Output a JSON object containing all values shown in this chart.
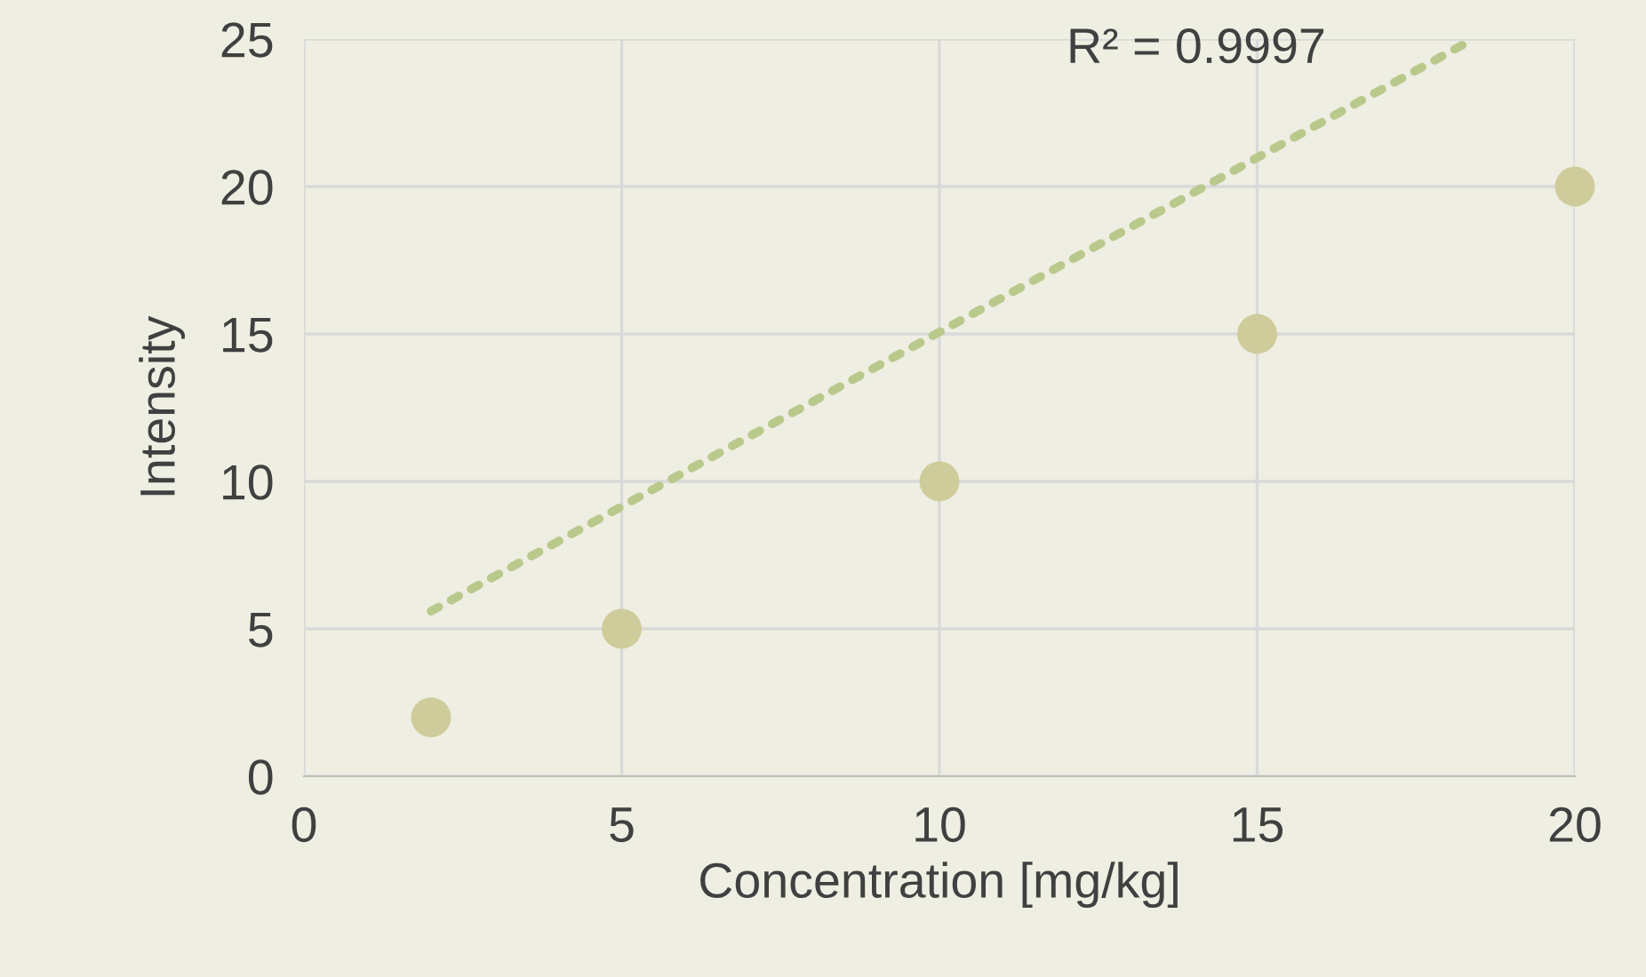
{
  "chart_data": {
    "type": "scatter",
    "xlabel": "Concentration [mg/kg]",
    "ylabel": "Intensity",
    "x": [
      2,
      5,
      10,
      15,
      20
    ],
    "series": [
      {
        "color": "#cfcc9c",
        "values": [
          2,
          5,
          10,
          15,
          20
        ],
        "marker": "circle"
      },
      {
        "type": "line",
        "color": "#b9c98c",
        "x": [
          2,
          18.4
        ],
        "values": [
          5.6,
          25
        ],
        "line_style": "dotted",
        "marker": "none"
      }
    ],
    "annotations": [
      "R² = 0.9997"
    ],
    "xlim": [
      0,
      20
    ],
    "ylim": [
      0,
      25
    ],
    "xticks": [
      0,
      5,
      10,
      15,
      20
    ],
    "yticks": [
      0,
      5,
      10,
      15,
      20,
      25
    ],
    "grid": true,
    "legend": false
  }
}
